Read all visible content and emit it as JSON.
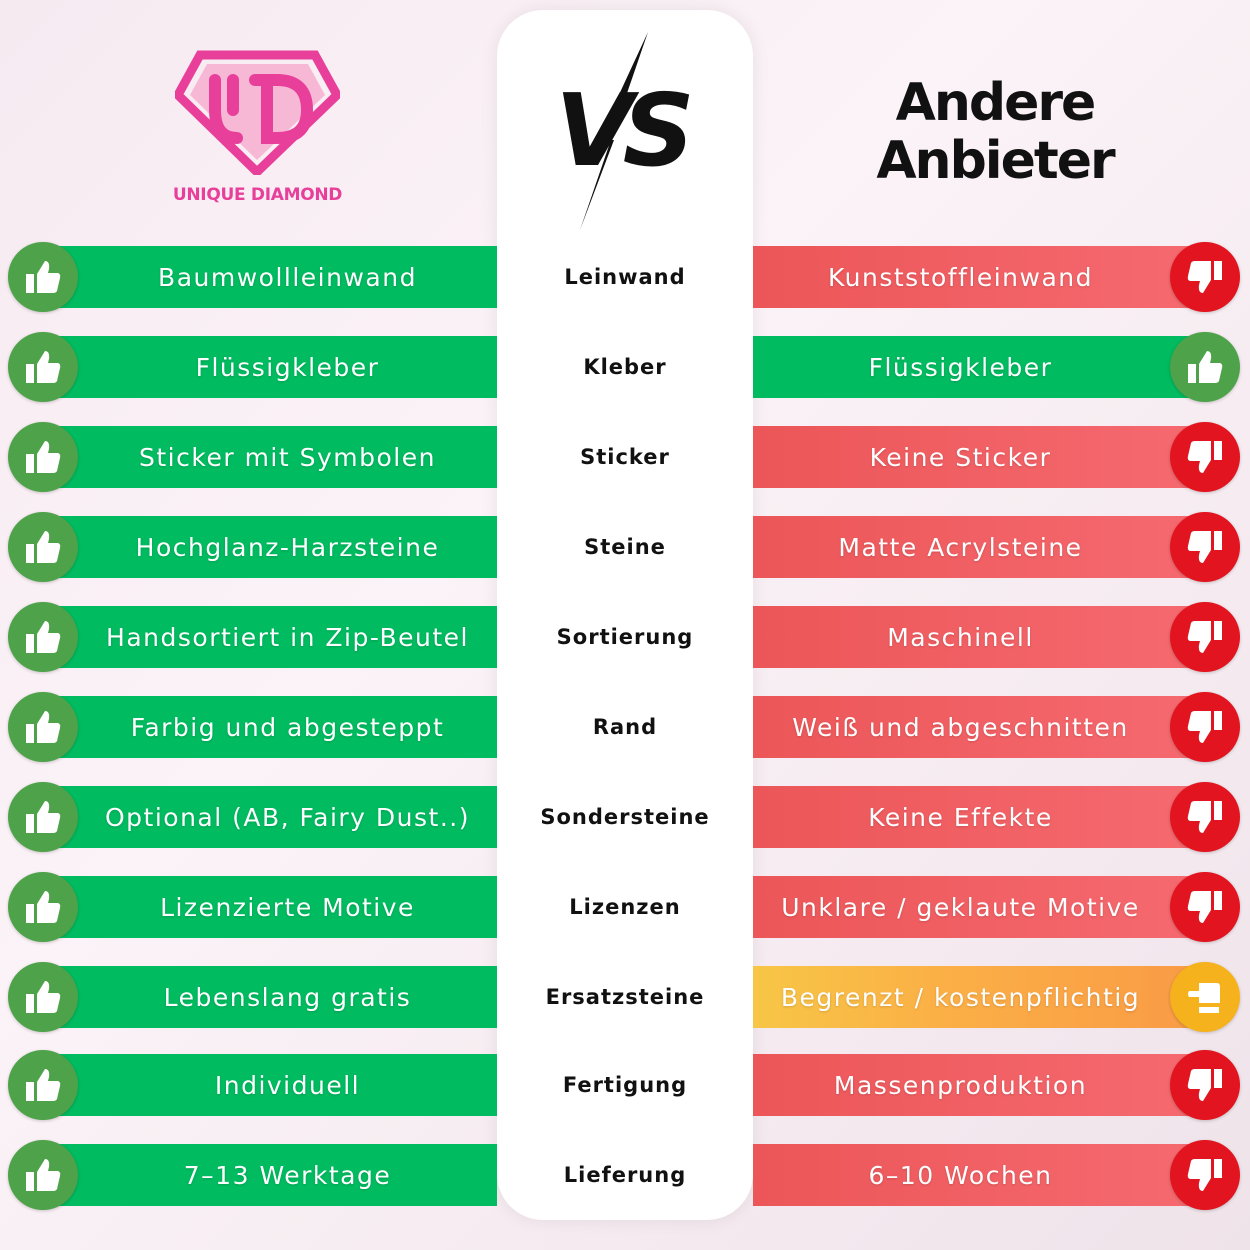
{
  "brand": {
    "name": "UNIQUE DIAMOND",
    "color": "#e8409a"
  },
  "vs_label": "VS",
  "competitor_title": "Andere Anbieter",
  "colors": {
    "good": "#00bb60",
    "bad": "#ec5658",
    "neutral": "#f9b046"
  },
  "rows": [
    {
      "ours": "Baumwollleinwand",
      "category": "Leinwand",
      "theirs": "Kunststoffleinwand",
      "rating": "bad"
    },
    {
      "ours": "Flüssigkleber",
      "category": "Kleber",
      "theirs": "Flüssigkleber",
      "rating": "good"
    },
    {
      "ours": "Sticker mit Symbolen",
      "category": "Sticker",
      "theirs": "Keine Sticker",
      "rating": "bad"
    },
    {
      "ours": "Hochglanz-Harzsteine",
      "category": "Steine",
      "theirs": "Matte Acrylsteine",
      "rating": "bad"
    },
    {
      "ours": "Handsortiert in Zip-Beutel",
      "category": "Sortierung",
      "theirs": "Maschinell",
      "rating": "bad"
    },
    {
      "ours": "Farbig und abgesteppt",
      "category": "Rand",
      "theirs": "Weiß und abgeschnitten",
      "rating": "bad"
    },
    {
      "ours": "Optional (AB, Fairy Dust..)",
      "category": "Sondersteine",
      "theirs": "Keine Effekte",
      "rating": "bad"
    },
    {
      "ours": "Lizenzierte Motive",
      "category": "Lizenzen",
      "theirs": "Unklare / geklaute Motive",
      "rating": "bad"
    },
    {
      "ours": "Lebenslang gratis",
      "category": "Ersatzsteine",
      "theirs": "Begrenzt / kostenpflichtig",
      "rating": "mid"
    },
    {
      "ours": "Individuell",
      "category": "Fertigung",
      "theirs": "Massenproduktion",
      "rating": "bad"
    },
    {
      "ours": "7–13 Werktage",
      "category": "Lieferung",
      "theirs": "6–10 Wochen",
      "rating": "bad"
    }
  ]
}
